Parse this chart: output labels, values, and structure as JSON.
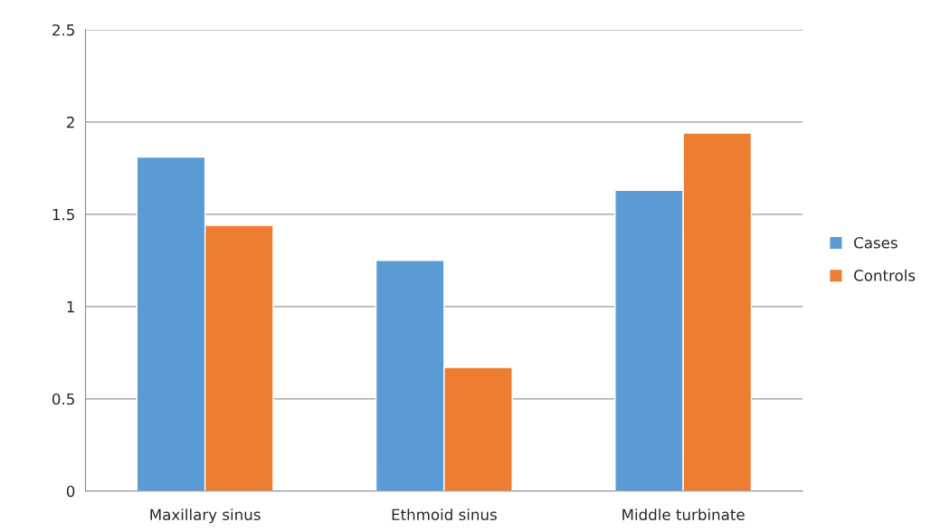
{
  "chart_data": {
    "type": "bar",
    "categories": [
      "Maxillary sinus",
      "Ethmoid sinus",
      "Middle turbinate"
    ],
    "series": [
      {
        "name": "Cases",
        "color": "#5b9bd5",
        "values": [
          1.81,
          1.25,
          1.63
        ]
      },
      {
        "name": "Controls",
        "color": "#ed7d31",
        "values": [
          1.44,
          0.67,
          1.94
        ]
      }
    ],
    "ylim": [
      0,
      2.5
    ],
    "yticks": [
      0,
      0.5,
      1,
      1.5,
      2,
      2.5
    ],
    "grid": "y",
    "legend": "right"
  }
}
